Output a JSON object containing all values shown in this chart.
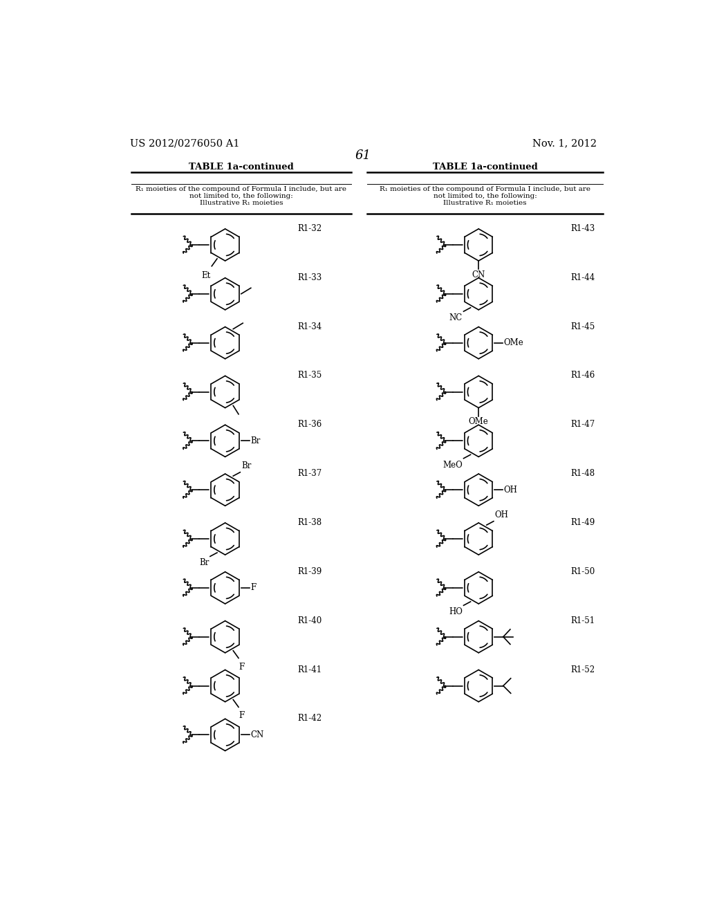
{
  "page_number": "61",
  "patent_number": "US 2012/0276050 A1",
  "patent_date": "Nov. 1, 2012",
  "table_title": "TABLE 1a-continued",
  "table_header_line1": "R₁ moieties of the compound of Formula I include, but are",
  "table_header_line2": "not limited to, the following:",
  "table_header_line3": "Illustrative R₁ moieties",
  "bg_color": "#ffffff",
  "left_entries": [
    {
      "id": "R1-32",
      "sub": "Et",
      "sub_pos": "ortho_bottom_left"
    },
    {
      "id": "R1-33",
      "sub": "",
      "sub_pos": "para_right_line"
    },
    {
      "id": "R1-34",
      "sub": "",
      "sub_pos": "meta_upper_right_line"
    },
    {
      "id": "R1-35",
      "sub": "",
      "sub_pos": "ortho_bottom_line"
    },
    {
      "id": "R1-36",
      "sub": "Br",
      "sub_pos": "para_right"
    },
    {
      "id": "R1-37",
      "sub": "Br",
      "sub_pos": "ortho_upper_right"
    },
    {
      "id": "R1-38",
      "sub": "Br",
      "sub_pos": "ortho_lower_left"
    },
    {
      "id": "R1-39",
      "sub": "F",
      "sub_pos": "para_right"
    },
    {
      "id": "R1-40",
      "sub": "F",
      "sub_pos": "meta_lower_right"
    },
    {
      "id": "R1-41",
      "sub": "F",
      "sub_pos": "ortho_lower_right"
    },
    {
      "id": "R1-42",
      "sub": "CN",
      "sub_pos": "para_right"
    }
  ],
  "right_entries": [
    {
      "id": "R1-43",
      "sub": "CN",
      "sub_pos": "para_bottom"
    },
    {
      "id": "R1-44",
      "sub": "NC",
      "sub_pos": "ortho_lower_left"
    },
    {
      "id": "R1-45",
      "sub": "OMe",
      "sub_pos": "para_right"
    },
    {
      "id": "R1-46",
      "sub": "OMe",
      "sub_pos": "meta_bottom"
    },
    {
      "id": "R1-47",
      "sub": "MeO",
      "sub_pos": "ortho_lower_left"
    },
    {
      "id": "R1-48",
      "sub": "OH",
      "sub_pos": "para_right"
    },
    {
      "id": "R1-49",
      "sub": "OH",
      "sub_pos": "ortho_upper_right"
    },
    {
      "id": "R1-50",
      "sub": "HO",
      "sub_pos": "ortho_lower_left"
    },
    {
      "id": "R1-51",
      "sub": "tBu",
      "sub_pos": "para_right_branch"
    },
    {
      "id": "R1-52",
      "sub": "iPr",
      "sub_pos": "para_right_branch2"
    }
  ]
}
